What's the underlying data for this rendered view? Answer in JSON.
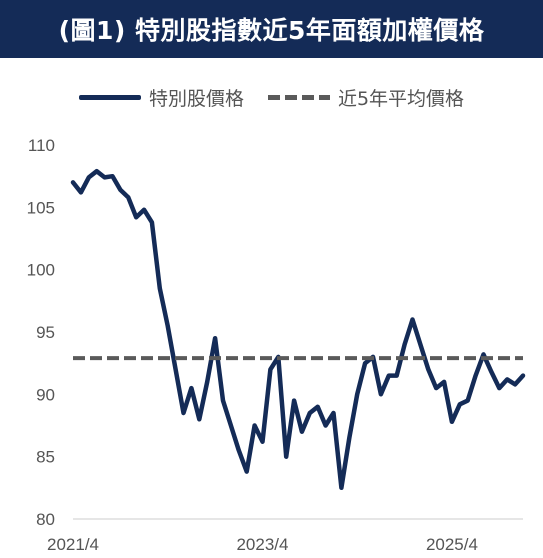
{
  "header": {
    "title": "(圖1) 特別股指數近5年面額加權價格"
  },
  "legend": {
    "series1": "特別股價格",
    "series2": "近5年平均價格"
  },
  "colors": {
    "title_bg": "#142b57",
    "series_line": "#142b57",
    "avg_line": "#5a5a5a",
    "axis": "#cccccc",
    "tick_text": "#555555"
  },
  "chart_data": {
    "type": "line",
    "title": "(圖1) 特別股指數近5年面額加權價格",
    "x_ticks": [
      "2021/4",
      "2023/4",
      "2025/4"
    ],
    "ylim": [
      80,
      110
    ],
    "y_ticks": [
      80,
      85,
      90,
      95,
      100,
      105,
      110
    ],
    "grid": false,
    "legend_position": "top",
    "average": 92.9,
    "series": [
      {
        "name": "特別股價格",
        "x": [
          "2021-04",
          "2021-05",
          "2021-06",
          "2021-07",
          "2021-08",
          "2021-09",
          "2021-10",
          "2021-11",
          "2021-12",
          "2022-01",
          "2022-02",
          "2022-03",
          "2022-04",
          "2022-05",
          "2022-06",
          "2022-07",
          "2022-08",
          "2022-09",
          "2022-10",
          "2022-11",
          "2022-12",
          "2023-01",
          "2023-02",
          "2023-03",
          "2023-04",
          "2023-05",
          "2023-06",
          "2023-07",
          "2023-08",
          "2023-09",
          "2023-10",
          "2023-11",
          "2023-12",
          "2024-01",
          "2024-02",
          "2024-03",
          "2024-04",
          "2024-05",
          "2024-06",
          "2024-07",
          "2024-08",
          "2024-09",
          "2024-10",
          "2024-11",
          "2024-12",
          "2025-01",
          "2025-02",
          "2025-03",
          "2025-04",
          "2025-05",
          "2025-06",
          "2025-07",
          "2025-08",
          "2025-09",
          "2025-10",
          "2025-11",
          "2025-12",
          "2026-01"
        ],
        "values": [
          107.0,
          106.2,
          107.4,
          107.9,
          107.4,
          107.5,
          106.4,
          105.8,
          104.2,
          104.8,
          103.8,
          98.5,
          95.5,
          92.0,
          88.5,
          90.5,
          88.0,
          91.0,
          94.5,
          89.5,
          87.5,
          85.5,
          83.8,
          87.5,
          86.2,
          92.0,
          93.0,
          85.0,
          89.5,
          87.0,
          88.5,
          89.0,
          87.5,
          88.5,
          82.5,
          86.5,
          90.0,
          92.5,
          93.0,
          90.0,
          91.5,
          91.5,
          94.0,
          96.0,
          94.0,
          92.0,
          90.5,
          91.0,
          87.8,
          89.2,
          89.5,
          91.5,
          93.2,
          91.8,
          90.5,
          91.2,
          90.8,
          91.5
        ]
      },
      {
        "name": "近5年平均價格",
        "value": 92.9
      }
    ]
  }
}
